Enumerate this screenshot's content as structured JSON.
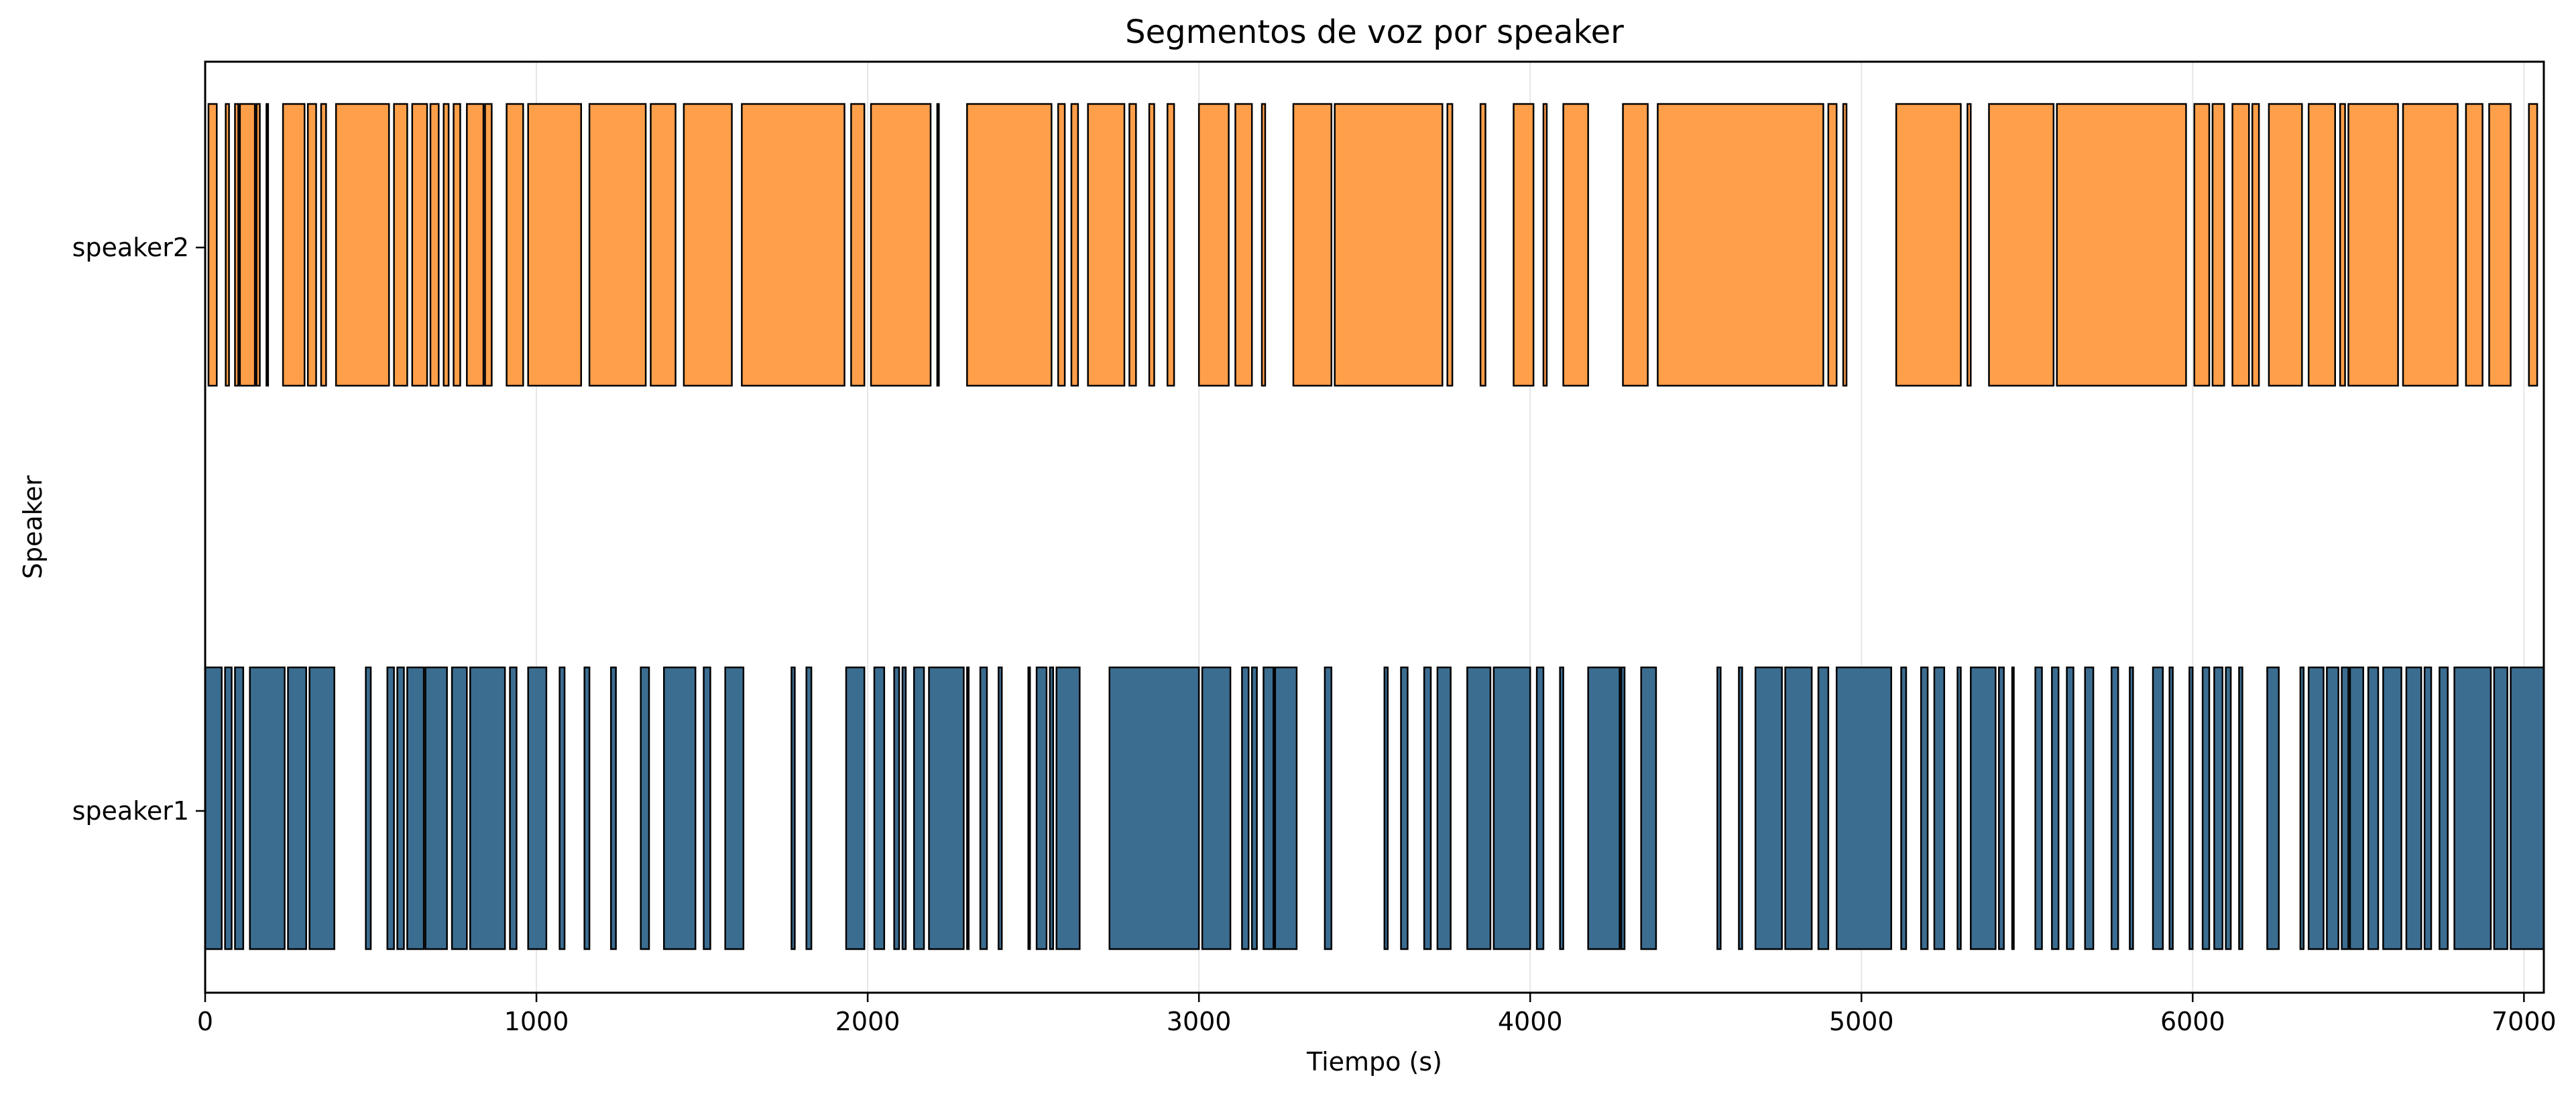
{
  "chart_data": {
    "type": "bar",
    "subtype": "broken-barh timeline",
    "title": "Segmentos de voz por speaker",
    "xlabel": "Tiempo (s)",
    "ylabel": "Speaker",
    "xlim": [
      0,
      7060
    ],
    "xticks": [
      0,
      1000,
      2000,
      3000,
      4000,
      5000,
      6000,
      7000
    ],
    "grid": "vertical",
    "legend": "none",
    "categories": [
      "speaker1",
      "speaker2"
    ],
    "series": [
      {
        "name": "speaker2",
        "color": "#ff9f4a",
        "edge_color": "#000000",
        "segments": [
          [
            10,
            35
          ],
          [
            62,
            72
          ],
          [
            90,
            100
          ],
          [
            105,
            150
          ],
          [
            155,
            165
          ],
          [
            185,
            190
          ],
          [
            235,
            300
          ],
          [
            310,
            335
          ],
          [
            350,
            365
          ],
          [
            395,
            555
          ],
          [
            570,
            610
          ],
          [
            625,
            670
          ],
          [
            680,
            705
          ],
          [
            720,
            735
          ],
          [
            750,
            770
          ],
          [
            790,
            840
          ],
          [
            845,
            865
          ],
          [
            910,
            960
          ],
          [
            975,
            1135
          ],
          [
            1160,
            1330
          ],
          [
            1345,
            1420
          ],
          [
            1445,
            1590
          ],
          [
            1620,
            1930
          ],
          [
            1950,
            1990
          ],
          [
            2010,
            2190
          ],
          [
            2210,
            2215
          ],
          [
            2300,
            2555
          ],
          [
            2575,
            2595
          ],
          [
            2615,
            2635
          ],
          [
            2665,
            2775
          ],
          [
            2790,
            2810
          ],
          [
            2850,
            2865
          ],
          [
            2905,
            2925
          ],
          [
            3000,
            3090
          ],
          [
            3110,
            3160
          ],
          [
            3190,
            3200
          ],
          [
            3285,
            3400
          ],
          [
            3410,
            3735
          ],
          [
            3750,
            3765
          ],
          [
            3850,
            3865
          ],
          [
            3950,
            4010
          ],
          [
            4040,
            4050
          ],
          [
            4100,
            4175
          ],
          [
            4280,
            4355
          ],
          [
            4385,
            4885
          ],
          [
            4900,
            4925
          ],
          [
            4945,
            4955
          ],
          [
            5105,
            5300
          ],
          [
            5320,
            5330
          ],
          [
            5385,
            5580
          ],
          [
            5590,
            5980
          ],
          [
            6005,
            6050
          ],
          [
            6060,
            6095
          ],
          [
            6120,
            6170
          ],
          [
            6180,
            6200
          ],
          [
            6230,
            6330
          ],
          [
            6350,
            6430
          ],
          [
            6445,
            6460
          ],
          [
            6470,
            6620
          ],
          [
            6635,
            6800
          ],
          [
            6825,
            6875
          ],
          [
            6895,
            6960
          ],
          [
            7015,
            7040
          ]
        ]
      },
      {
        "name": "speaker1",
        "color": "#3b6d91",
        "edge_color": "#000000",
        "segments": [
          [
            0,
            50
          ],
          [
            60,
            80
          ],
          [
            90,
            115
          ],
          [
            135,
            240
          ],
          [
            250,
            305
          ],
          [
            315,
            390
          ],
          [
            485,
            500
          ],
          [
            550,
            570
          ],
          [
            580,
            600
          ],
          [
            610,
            660
          ],
          [
            665,
            730
          ],
          [
            745,
            790
          ],
          [
            800,
            905
          ],
          [
            920,
            940
          ],
          [
            975,
            1030
          ],
          [
            1070,
            1085
          ],
          [
            1145,
            1160
          ],
          [
            1225,
            1240
          ],
          [
            1315,
            1340
          ],
          [
            1385,
            1480
          ],
          [
            1505,
            1525
          ],
          [
            1570,
            1625
          ],
          [
            1770,
            1780
          ],
          [
            1815,
            1830
          ],
          [
            1935,
            1990
          ],
          [
            2020,
            2050
          ],
          [
            2080,
            2095
          ],
          [
            2105,
            2115
          ],
          [
            2140,
            2170
          ],
          [
            2185,
            2290
          ],
          [
            2300,
            2305
          ],
          [
            2340,
            2360
          ],
          [
            2395,
            2405
          ],
          [
            2485,
            2490
          ],
          [
            2510,
            2540
          ],
          [
            2550,
            2560
          ],
          [
            2570,
            2640
          ],
          [
            2730,
            3000
          ],
          [
            3010,
            3095
          ],
          [
            3130,
            3150
          ],
          [
            3160,
            3175
          ],
          [
            3195,
            3225
          ],
          [
            3230,
            3295
          ],
          [
            3380,
            3400
          ],
          [
            3560,
            3570
          ],
          [
            3610,
            3630
          ],
          [
            3680,
            3700
          ],
          [
            3720,
            3760
          ],
          [
            3810,
            3880
          ],
          [
            3890,
            4000
          ],
          [
            4020,
            4040
          ],
          [
            4090,
            4100
          ],
          [
            4175,
            4270
          ],
          [
            4275,
            4285
          ],
          [
            4335,
            4380
          ],
          [
            4565,
            4575
          ],
          [
            4630,
            4640
          ],
          [
            4680,
            4760
          ],
          [
            4770,
            4850
          ],
          [
            4870,
            4900
          ],
          [
            4925,
            5090
          ],
          [
            5120,
            5135
          ],
          [
            5180,
            5200
          ],
          [
            5220,
            5250
          ],
          [
            5290,
            5300
          ],
          [
            5330,
            5405
          ],
          [
            5415,
            5430
          ],
          [
            5455,
            5460
          ],
          [
            5525,
            5545
          ],
          [
            5575,
            5595
          ],
          [
            5620,
            5640
          ],
          [
            5675,
            5700
          ],
          [
            5755,
            5775
          ],
          [
            5810,
            5820
          ],
          [
            5880,
            5910
          ],
          [
            5930,
            5940
          ],
          [
            5990,
            6000
          ],
          [
            6030,
            6050
          ],
          [
            6065,
            6090
          ],
          [
            6100,
            6115
          ],
          [
            6140,
            6150
          ],
          [
            6225,
            6260
          ],
          [
            6325,
            6335
          ],
          [
            6350,
            6395
          ],
          [
            6405,
            6440
          ],
          [
            6450,
            6470
          ],
          [
            6475,
            6515
          ],
          [
            6530,
            6560
          ],
          [
            6575,
            6630
          ],
          [
            6645,
            6690
          ],
          [
            6700,
            6720
          ],
          [
            6745,
            6770
          ],
          [
            6790,
            6900
          ],
          [
            6910,
            6950
          ],
          [
            6960,
            7060
          ]
        ]
      }
    ]
  }
}
